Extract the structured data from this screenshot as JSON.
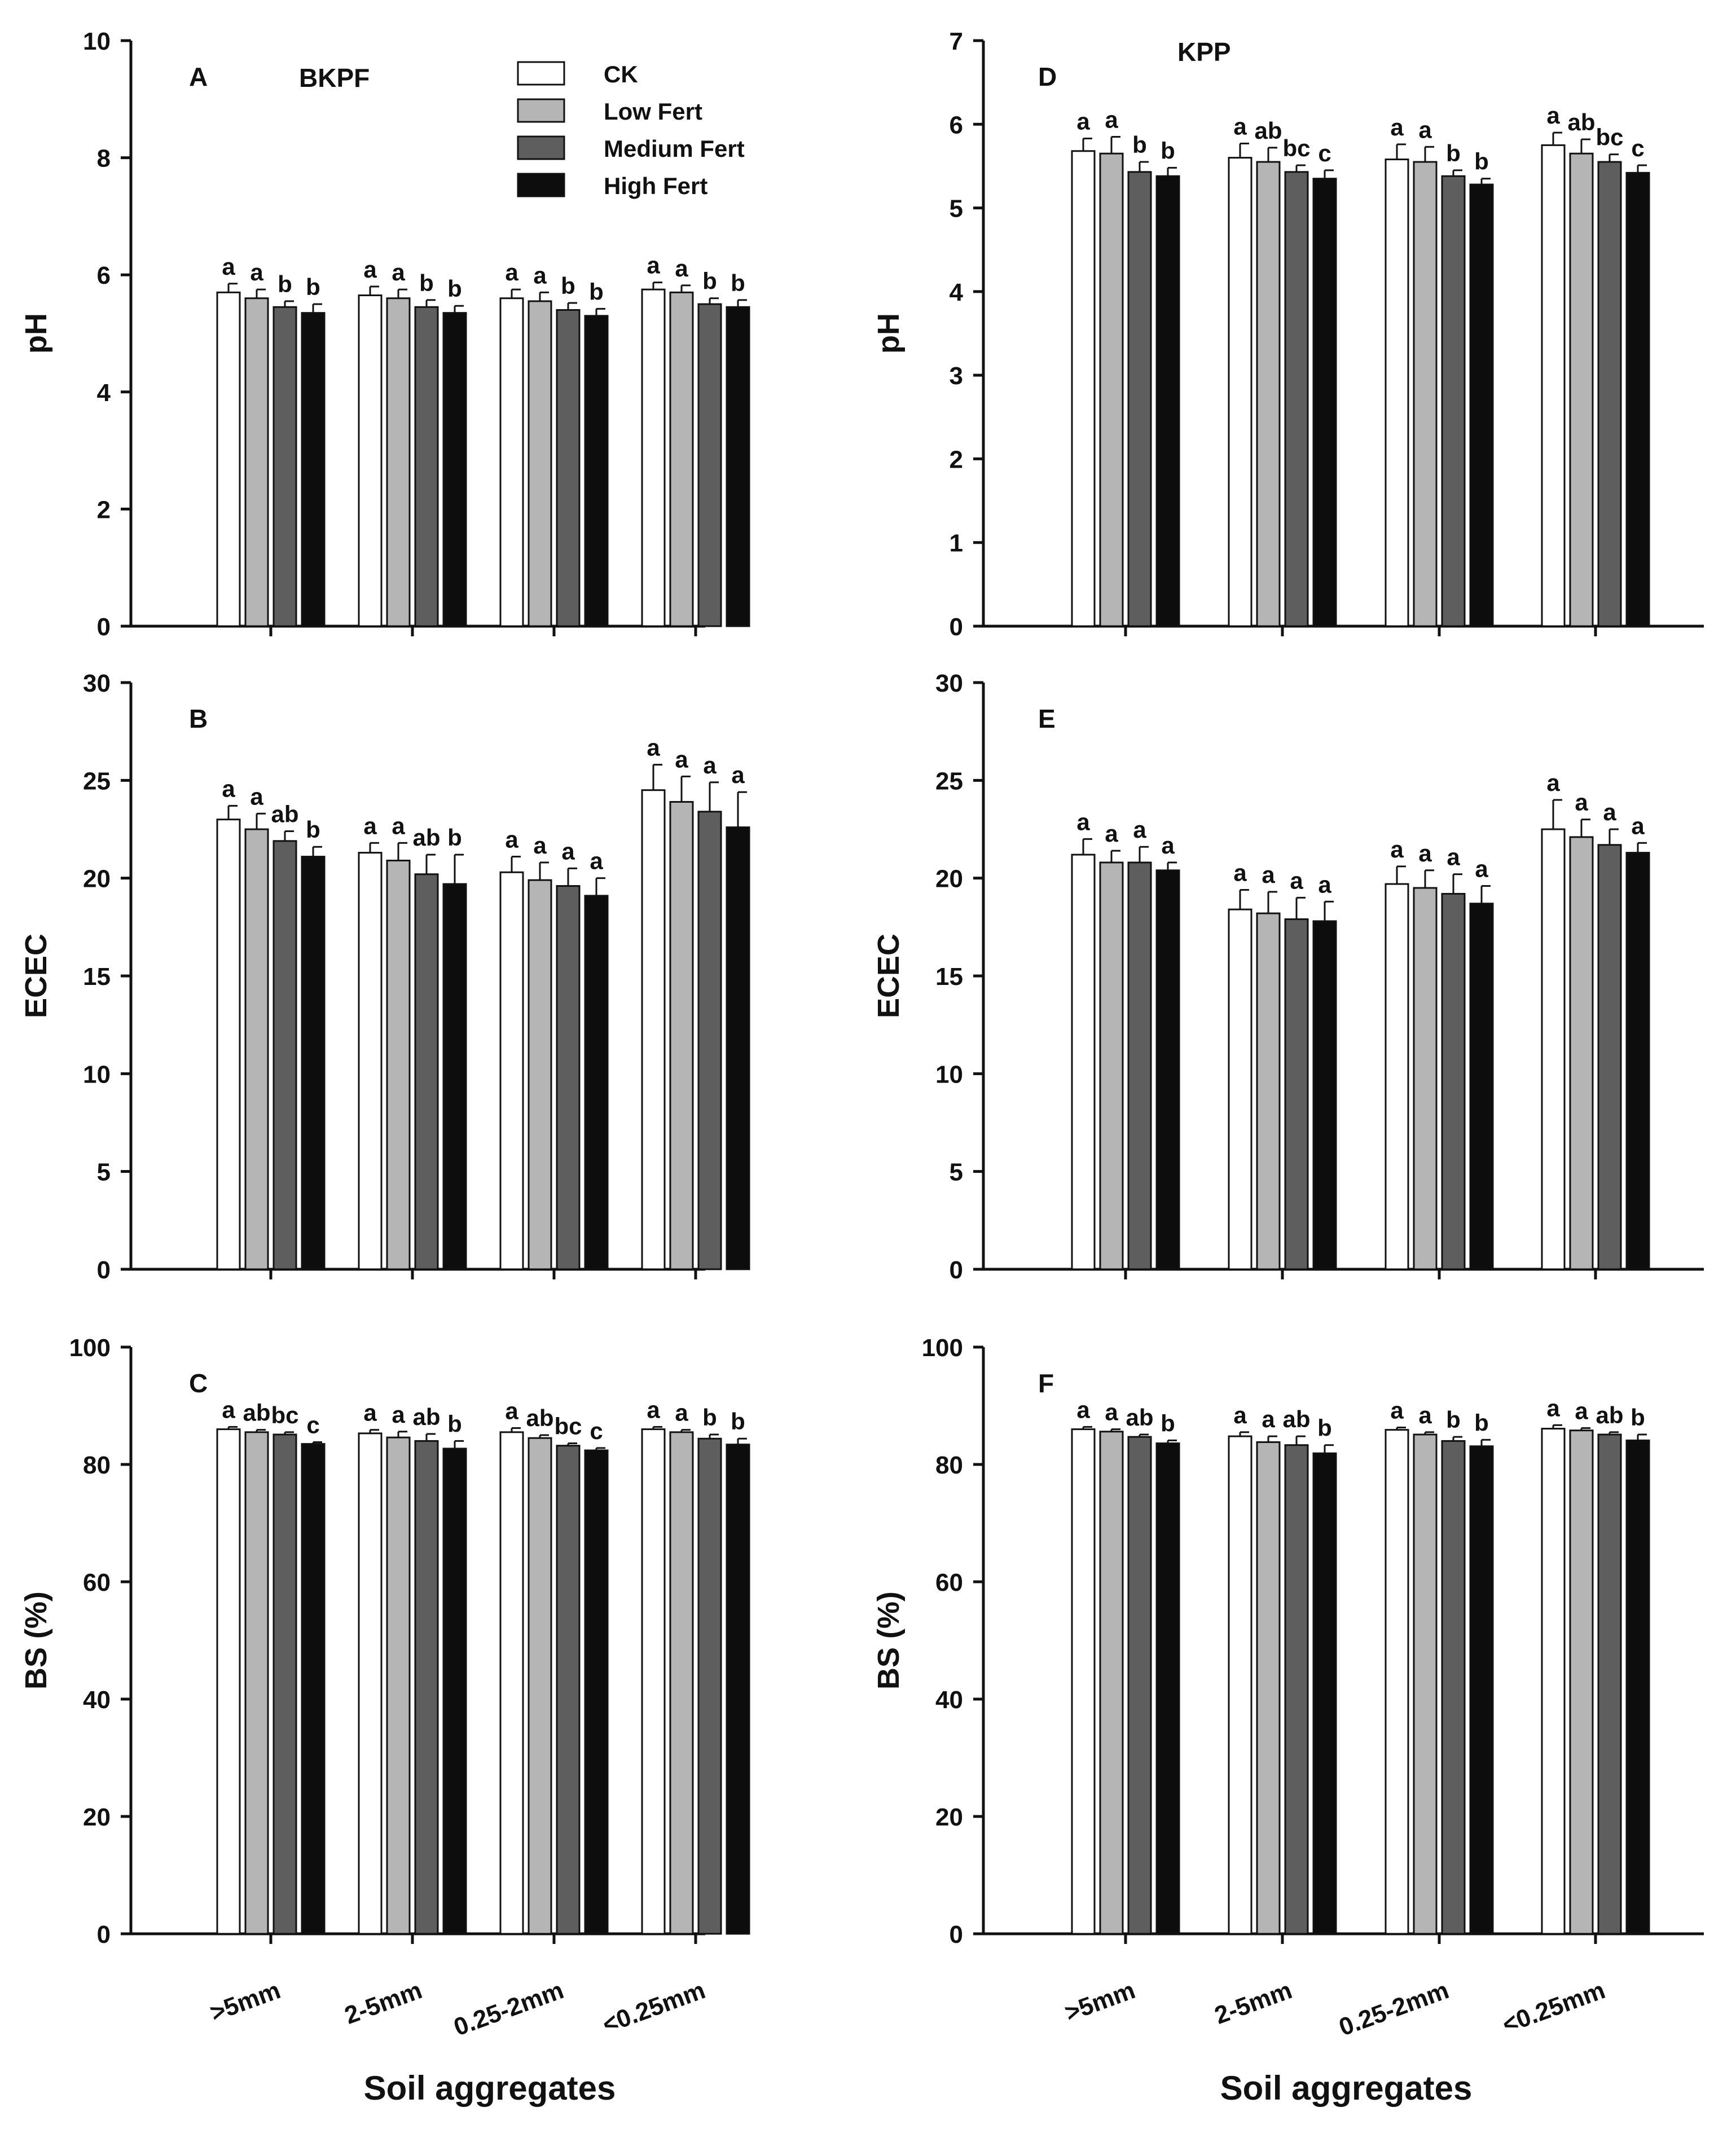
{
  "categories": [
    ">5mm",
    "2-5mm",
    "0.25-2mm",
    "<0.25mm"
  ],
  "legend": [
    {
      "name": "CK",
      "color": "#ffffff"
    },
    {
      "name": "Low Fert",
      "color": "#b5b5b5"
    },
    {
      "name": "Medium Fert",
      "color": "#5e5e5e"
    },
    {
      "name": "High Fert",
      "color": "#0d0d0d"
    }
  ],
  "x_title": "Soil aggregates",
  "sites": {
    "left": "BKPF",
    "right": "KPP"
  },
  "chart_data": [
    {
      "id": "A",
      "type": "bar",
      "site": "BKPF",
      "ylabel": "pH",
      "ylim": [
        0,
        10
      ],
      "yticks": [
        "0",
        "2",
        "4",
        "6",
        "8",
        "10"
      ],
      "categories": [
        ">5mm",
        "2-5mm",
        "0.25-2mm",
        "<0.25mm"
      ],
      "series": [
        {
          "name": "CK",
          "values": [
            5.7,
            5.65,
            5.6,
            5.75
          ],
          "errors": [
            0.15,
            0.15,
            0.15,
            0.12
          ],
          "labels": [
            "a",
            "a",
            "a",
            "a"
          ]
        },
        {
          "name": "Low Fert",
          "values": [
            5.6,
            5.6,
            5.55,
            5.7
          ],
          "errors": [
            0.15,
            0.15,
            0.15,
            0.12
          ],
          "labels": [
            "a",
            "a",
            "a",
            "a"
          ]
        },
        {
          "name": "Medium Fert",
          "values": [
            5.45,
            5.45,
            5.4,
            5.5
          ],
          "errors": [
            0.1,
            0.12,
            0.12,
            0.1
          ],
          "labels": [
            "b",
            "b",
            "b",
            "b"
          ]
        },
        {
          "name": "High Fert",
          "values": [
            5.35,
            5.35,
            5.3,
            5.45
          ],
          "errors": [
            0.15,
            0.12,
            0.12,
            0.12
          ],
          "labels": [
            "b",
            "b",
            "b",
            "b"
          ]
        }
      ]
    },
    {
      "id": "B",
      "type": "bar",
      "site": "BKPF",
      "ylabel": "ECEC",
      "ylim": [
        0,
        30
      ],
      "yticks": [
        "0",
        "5",
        "10",
        "15",
        "20",
        "25",
        "30"
      ],
      "categories": [
        ">5mm",
        "2-5mm",
        "0.25-2mm",
        "<0.25mm"
      ],
      "series": [
        {
          "name": "CK",
          "values": [
            23.0,
            21.3,
            20.3,
            24.5
          ],
          "errors": [
            0.7,
            0.5,
            0.8,
            1.3
          ],
          "labels": [
            "a",
            "a",
            "a",
            "a"
          ]
        },
        {
          "name": "Low Fert",
          "values": [
            22.5,
            20.9,
            19.9,
            23.9
          ],
          "errors": [
            0.8,
            0.9,
            0.9,
            1.3
          ],
          "labels": [
            "a",
            "a",
            "a",
            "a"
          ]
        },
        {
          "name": "Medium Fert",
          "values": [
            21.9,
            20.2,
            19.6,
            23.4
          ],
          "errors": [
            0.5,
            1.0,
            0.9,
            1.5
          ],
          "labels": [
            "ab",
            "ab",
            "a",
            "a"
          ]
        },
        {
          "name": "High Fert",
          "values": [
            21.1,
            19.7,
            19.1,
            22.6
          ],
          "errors": [
            0.5,
            1.5,
            0.9,
            1.8
          ],
          "labels": [
            "b",
            "b",
            "a",
            "a"
          ]
        }
      ]
    },
    {
      "id": "C",
      "type": "bar",
      "site": "BKPF",
      "ylabel": "BS (%)",
      "ylim": [
        0,
        100
      ],
      "yticks": [
        "0",
        "20",
        "40",
        "60",
        "80",
        "100"
      ],
      "categories": [
        ">5mm",
        "2-5mm",
        "0.25-2mm",
        "<0.25mm"
      ],
      "series": [
        {
          "name": "CK",
          "values": [
            86.0,
            85.3,
            85.5,
            86.0
          ],
          "errors": [
            0.4,
            0.6,
            0.7,
            0.4
          ],
          "labels": [
            "a",
            "a",
            "a",
            "a"
          ]
        },
        {
          "name": "Low Fert",
          "values": [
            85.5,
            84.6,
            84.5,
            85.5
          ],
          "errors": [
            0.4,
            1.0,
            0.5,
            0.4
          ],
          "labels": [
            "ab",
            "a",
            "ab",
            "a"
          ]
        },
        {
          "name": "Medium Fert",
          "values": [
            85.1,
            84.0,
            83.2,
            84.4
          ],
          "errors": [
            0.4,
            1.2,
            0.4,
            0.7
          ],
          "labels": [
            "bc",
            "ab",
            "bc",
            "b"
          ]
        },
        {
          "name": "High Fert",
          "values": [
            83.5,
            82.7,
            82.4,
            83.4
          ],
          "errors": [
            0.3,
            1.3,
            0.4,
            1.0
          ],
          "labels": [
            "c",
            "b",
            "c",
            "b"
          ]
        }
      ]
    },
    {
      "id": "D",
      "type": "bar",
      "site": "KPP",
      "ylabel": "pH",
      "ylim": [
        0,
        7
      ],
      "yticks": [
        "0",
        "1",
        "2",
        "3",
        "4",
        "5",
        "6",
        "7"
      ],
      "categories": [
        ">5mm",
        "2-5mm",
        "0.25-2mm",
        "<0.25mm"
      ],
      "series": [
        {
          "name": "CK",
          "values": [
            5.68,
            5.6,
            5.58,
            5.75
          ],
          "errors": [
            0.15,
            0.17,
            0.18,
            0.15
          ],
          "labels": [
            "a",
            "a",
            "a",
            "a"
          ]
        },
        {
          "name": "Low Fert",
          "values": [
            5.65,
            5.55,
            5.55,
            5.65
          ],
          "errors": [
            0.2,
            0.17,
            0.18,
            0.17
          ],
          "labels": [
            "a",
            "ab",
            "a",
            "ab"
          ]
        },
        {
          "name": "Medium Fert",
          "values": [
            5.43,
            5.43,
            5.38,
            5.55
          ],
          "errors": [
            0.12,
            0.08,
            0.07,
            0.09
          ],
          "labels": [
            "b",
            "bc",
            "b",
            "bc"
          ]
        },
        {
          "name": "High Fert",
          "values": [
            5.38,
            5.35,
            5.28,
            5.42
          ],
          "errors": [
            0.1,
            0.1,
            0.07,
            0.09
          ],
          "labels": [
            "b",
            "c",
            "b",
            "c"
          ]
        }
      ]
    },
    {
      "id": "E",
      "type": "bar",
      "site": "KPP",
      "ylabel": "ECEC",
      "ylim": [
        0,
        30
      ],
      "yticks": [
        "0",
        "5",
        "10",
        "15",
        "20",
        "25",
        "30"
      ],
      "categories": [
        ">5mm",
        "2-5mm",
        "0.25-2mm",
        "<0.25mm"
      ],
      "series": [
        {
          "name": "CK",
          "values": [
            21.2,
            18.4,
            19.7,
            22.5
          ],
          "errors": [
            0.8,
            1.0,
            0.9,
            1.5
          ],
          "labels": [
            "a",
            "a",
            "a",
            "a"
          ]
        },
        {
          "name": "Low Fert",
          "values": [
            20.8,
            18.2,
            19.5,
            22.1
          ],
          "errors": [
            0.6,
            1.1,
            0.9,
            0.9
          ],
          "labels": [
            "a",
            "a",
            "a",
            "a"
          ]
        },
        {
          "name": "Medium Fert",
          "values": [
            20.8,
            17.9,
            19.2,
            21.7
          ],
          "errors": [
            0.8,
            1.1,
            1.0,
            0.8
          ],
          "labels": [
            "a",
            "a",
            "a",
            "a"
          ]
        },
        {
          "name": "High Fert",
          "values": [
            20.4,
            17.8,
            18.7,
            21.3
          ],
          "errors": [
            0.4,
            1.0,
            0.9,
            0.5
          ],
          "labels": [
            "a",
            "a",
            "a",
            "a"
          ]
        }
      ]
    },
    {
      "id": "F",
      "type": "bar",
      "site": "KPP",
      "ylabel": "BS (%)",
      "ylim": [
        0,
        100
      ],
      "yticks": [
        "0",
        "20",
        "40",
        "60",
        "80",
        "100"
      ],
      "categories": [
        ">5mm",
        "2-5mm",
        "0.25-2mm",
        "<0.25mm"
      ],
      "series": [
        {
          "name": "CK",
          "values": [
            86.0,
            84.8,
            85.9,
            86.1
          ],
          "errors": [
            0.4,
            0.7,
            0.4,
            0.6
          ],
          "labels": [
            "a",
            "a",
            "a",
            "a"
          ]
        },
        {
          "name": "Low Fert",
          "values": [
            85.6,
            83.8,
            85.1,
            85.8
          ],
          "errors": [
            0.4,
            1.0,
            0.4,
            0.4
          ],
          "labels": [
            "a",
            "a",
            "a",
            "a"
          ]
        },
        {
          "name": "Medium Fert",
          "values": [
            84.7,
            83.3,
            84.0,
            85.1
          ],
          "errors": [
            0.4,
            1.5,
            0.7,
            0.4
          ],
          "labels": [
            "ab",
            "ab",
            "b",
            "ab"
          ]
        },
        {
          "name": "High Fert",
          "values": [
            83.6,
            81.9,
            83.1,
            84.1
          ],
          "errors": [
            0.5,
            1.4,
            1.1,
            1.0
          ],
          "labels": [
            "b",
            "b",
            "b",
            "b"
          ]
        }
      ]
    }
  ]
}
